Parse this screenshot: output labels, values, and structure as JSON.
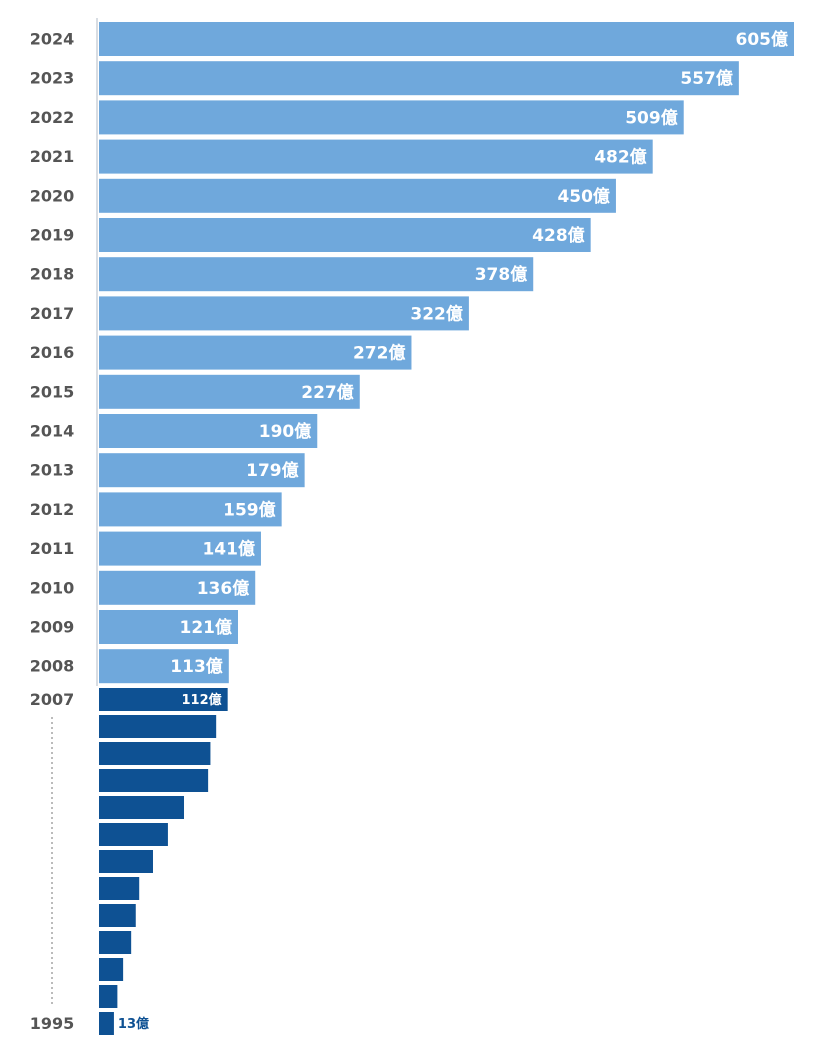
{
  "chart_data": {
    "type": "bar",
    "orientation": "horizontal",
    "categories": [
      "2024",
      "2023",
      "2022",
      "2021",
      "2020",
      "2019",
      "2018",
      "2017",
      "2016",
      "2015",
      "2014",
      "2013",
      "2012",
      "2011",
      "2010",
      "2009",
      "2008",
      "2007",
      null,
      null,
      null,
      null,
      null,
      null,
      null,
      null,
      null,
      null,
      null,
      "1995"
    ],
    "values": [
      605,
      557,
      509,
      482,
      450,
      428,
      378,
      322,
      272,
      227,
      190,
      179,
      159,
      141,
      136,
      121,
      113,
      112,
      102,
      97,
      95,
      74,
      60,
      47,
      35,
      32,
      28,
      21,
      16,
      13
    ],
    "value_labels": [
      "605億",
      "557億",
      "509億",
      "482億",
      "450億",
      "428億",
      "378億",
      "322億",
      "272億",
      "227億",
      "190億",
      "179億",
      "159億",
      "141億",
      "136億",
      "121億",
      "113億",
      "112億",
      null,
      null,
      null,
      null,
      null,
      null,
      null,
      null,
      null,
      null,
      null,
      "13億"
    ],
    "colors": [
      "#6fa8dc",
      "#6fa8dc",
      "#6fa8dc",
      "#6fa8dc",
      "#6fa8dc",
      "#6fa8dc",
      "#6fa8dc",
      "#6fa8dc",
      "#6fa8dc",
      "#6fa8dc",
      "#6fa8dc",
      "#6fa8dc",
      "#6fa8dc",
      "#6fa8dc",
      "#6fa8dc",
      "#6fa8dc",
      "#6fa8dc",
      "#0e5193",
      "#0e5193",
      "#0e5193",
      "#0e5193",
      "#0e5193",
      "#0e5193",
      "#0e5193",
      "#0e5193",
      "#0e5193",
      "#0e5193",
      "#0e5193",
      "#0e5193",
      "#0e5193"
    ],
    "xlim": [
      0,
      605
    ]
  }
}
